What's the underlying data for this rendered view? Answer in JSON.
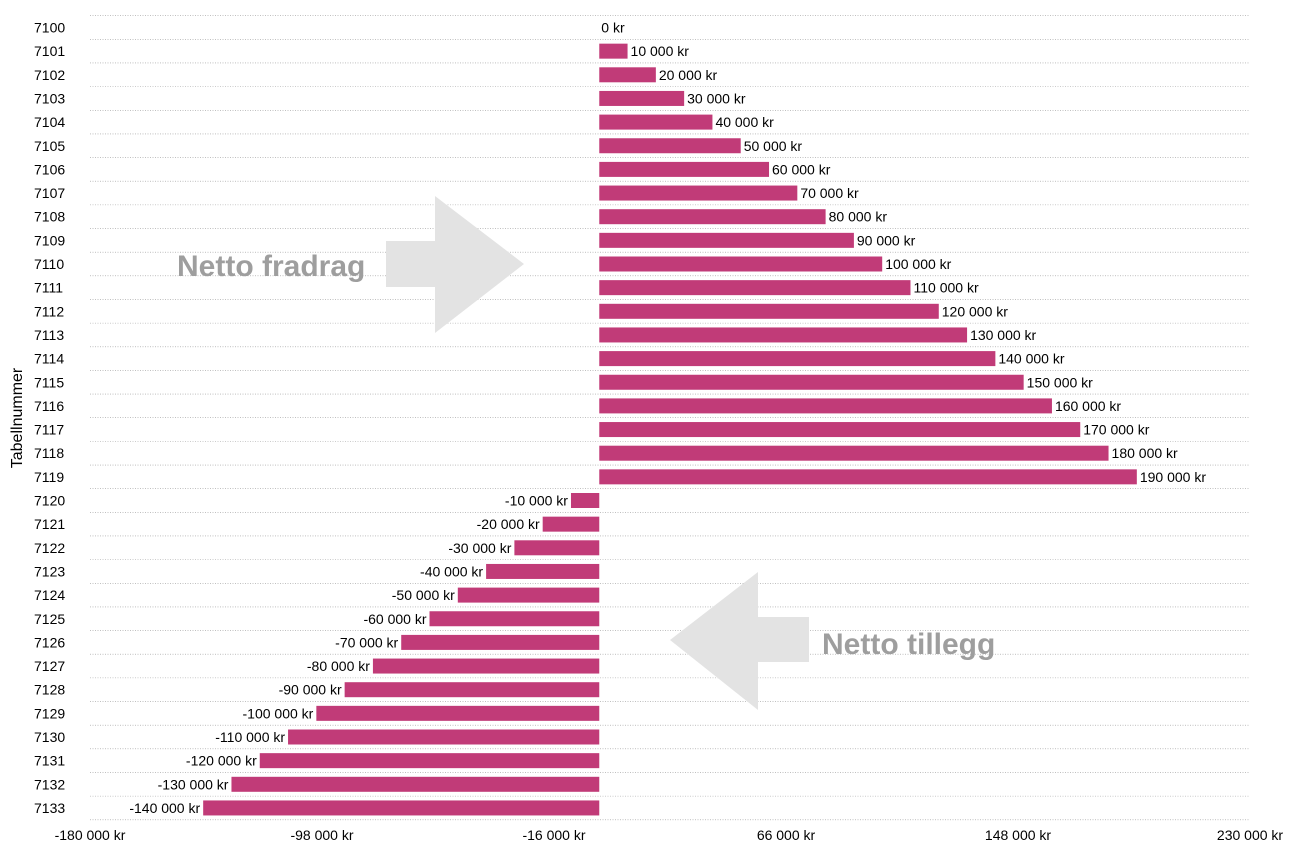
{
  "chart_data": {
    "type": "bar",
    "orientation": "horizontal",
    "ylabel": "Tabellnummer",
    "xlabel": "",
    "title": "",
    "categories": [
      "7100",
      "7101",
      "7102",
      "7103",
      "7104",
      "7105",
      "7106",
      "7107",
      "7108",
      "7109",
      "7110",
      "7111",
      "7112",
      "7113",
      "7114",
      "7115",
      "7116",
      "7117",
      "7118",
      "7119",
      "7120",
      "7121",
      "7122",
      "7123",
      "7124",
      "7125",
      "7126",
      "7127",
      "7128",
      "7129",
      "7130",
      "7131",
      "7132",
      "7133"
    ],
    "values": [
      0,
      10000,
      20000,
      30000,
      40000,
      50000,
      60000,
      70000,
      80000,
      90000,
      100000,
      110000,
      120000,
      130000,
      140000,
      150000,
      160000,
      170000,
      180000,
      190000,
      -10000,
      -20000,
      -30000,
      -40000,
      -50000,
      -60000,
      -70000,
      -80000,
      -90000,
      -100000,
      -110000,
      -120000,
      -130000,
      -140000
    ],
    "value_labels": [
      "0 kr",
      "10 000 kr",
      "20 000 kr",
      "30 000 kr",
      "40 000 kr",
      "50 000 kr",
      "60 000 kr",
      "70 000 kr",
      "80 000 kr",
      "90 000 kr",
      "100 000 kr",
      "110 000 kr",
      "120 000 kr",
      "130 000 kr",
      "140 000 kr",
      "150 000 kr",
      "160 000 kr",
      "170 000 kr",
      "180 000 kr",
      "190 000 kr",
      "-10 000 kr",
      "-20 000 kr",
      "-30 000 kr",
      "-40 000 kr",
      "-50 000 kr",
      "-60 000 kr",
      "-70 000 kr",
      "-80 000 kr",
      "-90 000 kr",
      "-100 000 kr",
      "-110 000 kr",
      "-120 000 kr",
      "-130 000 kr",
      "-140 000 kr"
    ],
    "xlim": [
      -180000,
      230000
    ],
    "x_ticks": [
      -180000,
      -98000,
      -16000,
      66000,
      148000,
      230000
    ],
    "x_tick_labels": [
      "-180 000 kr",
      "-98 000 kr",
      "-16 000 kr",
      "66 000 kr",
      "148 000 kr",
      "230 000 kr"
    ],
    "grid": "horizontal dotted",
    "bar_color": "#c13b78",
    "annotations": [
      {
        "text": "Netto fradrag",
        "arrow": "right",
        "color": "#9e9e9e"
      },
      {
        "text": "Netto tillegg",
        "arrow": "left",
        "color": "#9e9e9e"
      }
    ]
  }
}
